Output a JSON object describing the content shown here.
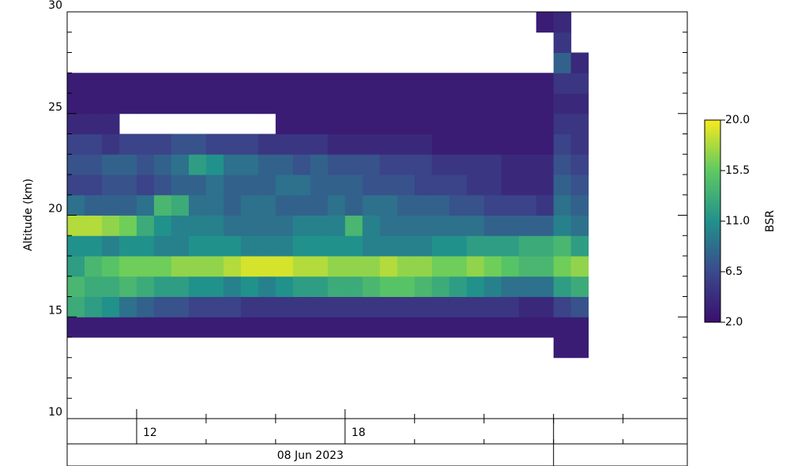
{
  "chart_data": {
    "type": "heatmap",
    "ylabel": "Altitude (km)",
    "date_label": "08 Jun 2023",
    "date_end": 24,
    "xlim": [
      10,
      27.85
    ],
    "ylim": [
      10,
      30
    ],
    "xticks": [
      12,
      18
    ],
    "x_minor_ticks": [
      14,
      16,
      20,
      22,
      24,
      26
    ],
    "yticks": [
      10,
      15,
      20,
      25,
      30
    ],
    "y_minor_ticks": [
      11,
      12,
      13,
      14,
      16,
      17,
      18,
      19,
      21,
      22,
      23,
      24,
      26,
      27,
      28,
      29
    ],
    "x": [
      10,
      10.5,
      11,
      11.5,
      12,
      12.5,
      13,
      13.5,
      14,
      14.5,
      15,
      15.5,
      16,
      16.5,
      17,
      17.5,
      18,
      18.5,
      19,
      19.5,
      20,
      20.5,
      21,
      21.5,
      22,
      22.5,
      23,
      23.5,
      24,
      24.5
    ],
    "y": [
      13,
      14,
      15,
      16,
      17,
      18,
      19,
      20,
      21,
      22,
      23,
      24,
      25,
      26,
      27,
      28,
      29
    ],
    "z": [
      [
        null,
        null,
        null,
        null,
        null,
        null,
        null,
        null,
        null,
        null,
        null,
        null,
        null,
        null,
        null,
        null,
        null,
        null,
        null,
        null,
        null,
        null,
        null,
        null,
        null,
        null,
        null,
        null,
        3,
        3
      ],
      [
        3,
        3,
        3,
        3,
        3,
        3,
        3,
        3,
        3,
        3,
        3,
        3,
        3,
        3,
        3,
        3,
        3,
        3,
        3,
        3,
        3,
        3,
        3,
        3,
        3,
        3,
        3,
        3,
        3,
        3
      ],
      [
        13,
        12,
        11,
        9,
        8,
        7,
        7,
        6,
        6,
        6,
        5,
        5,
        5,
        5,
        5,
        5,
        5,
        5,
        5,
        5,
        5,
        5,
        5,
        5,
        5,
        5,
        4,
        4,
        6,
        7
      ],
      [
        14,
        13,
        13,
        14,
        13,
        12,
        12,
        11,
        11,
        10,
        11,
        10,
        11,
        12,
        12,
        13,
        13,
        14,
        15,
        15,
        14,
        13,
        12,
        11,
        10,
        9,
        9,
        9,
        12,
        13
      ],
      [
        12,
        14,
        15,
        16,
        16,
        16,
        17,
        17,
        17,
        18,
        19,
        19,
        19,
        18,
        18,
        17,
        17,
        17,
        18,
        17,
        17,
        16,
        16,
        17,
        16,
        15,
        14,
        14,
        16,
        17
      ],
      [
        11,
        11,
        10,
        11,
        11,
        10,
        10,
        11,
        11,
        11,
        10,
        10,
        10,
        11,
        11,
        11,
        11,
        10,
        10,
        10,
        10,
        11,
        11,
        12,
        12,
        12,
        13,
        13,
        14,
        12
      ],
      [
        18,
        18,
        17,
        16,
        13,
        11,
        10,
        10,
        10,
        9,
        9,
        9,
        9,
        10,
        10,
        10,
        14,
        10,
        9,
        9,
        9,
        9,
        9,
        9,
        8,
        8,
        8,
        8,
        10,
        9
      ],
      [
        9,
        8,
        8,
        8,
        9,
        14,
        13,
        9,
        9,
        8,
        9,
        9,
        8,
        8,
        8,
        9,
        8,
        9,
        9,
        8,
        8,
        8,
        7,
        7,
        6,
        6,
        6,
        5,
        9,
        8
      ],
      [
        6,
        6,
        7,
        7,
        6,
        7,
        8,
        8,
        9,
        8,
        8,
        8,
        9,
        9,
        8,
        8,
        8,
        7,
        7,
        7,
        6,
        6,
        6,
        5,
        5,
        4,
        4,
        4,
        8,
        7
      ],
      [
        7,
        7,
        8,
        8,
        7,
        8,
        9,
        12,
        11,
        9,
        9,
        8,
        8,
        7,
        8,
        7,
        7,
        7,
        6,
        6,
        6,
        5,
        5,
        5,
        5,
        4,
        4,
        4,
        7,
        6
      ],
      [
        6,
        6,
        5,
        6,
        6,
        6,
        7,
        7,
        6,
        6,
        6,
        5,
        5,
        5,
        5,
        4,
        4,
        4,
        4,
        4,
        4,
        3,
        3,
        3,
        3,
        3,
        3,
        3,
        6,
        5
      ],
      [
        4,
        4,
        4,
        null,
        null,
        null,
        null,
        null,
        null,
        null,
        null,
        null,
        3,
        3,
        3,
        3,
        3,
        3,
        3,
        3,
        3,
        3,
        3,
        3,
        3,
        3,
        3,
        3,
        5,
        5
      ],
      [
        3,
        3,
        3,
        3,
        3,
        3,
        3,
        3,
        3,
        3,
        3,
        3,
        3,
        3,
        3,
        3,
        3,
        3,
        3,
        3,
        3,
        3,
        3,
        3,
        3,
        3,
        3,
        3,
        4,
        4
      ],
      [
        3,
        3,
        3,
        3,
        3,
        3,
        3,
        3,
        3,
        3,
        3,
        3,
        3,
        3,
        3,
        3,
        3,
        3,
        3,
        3,
        3,
        3,
        3,
        3,
        3,
        3,
        3,
        3,
        5,
        5
      ],
      [
        null,
        null,
        null,
        null,
        null,
        null,
        null,
        null,
        null,
        null,
        null,
        null,
        null,
        null,
        null,
        null,
        null,
        null,
        null,
        null,
        null,
        null,
        null,
        null,
        null,
        null,
        null,
        null,
        8,
        4
      ],
      [
        null,
        null,
        null,
        null,
        null,
        null,
        null,
        null,
        null,
        null,
        null,
        null,
        null,
        null,
        null,
        null,
        null,
        null,
        null,
        null,
        null,
        null,
        null,
        null,
        null,
        null,
        null,
        null,
        5,
        null
      ],
      [
        null,
        null,
        null,
        null,
        null,
        null,
        null,
        null,
        null,
        null,
        null,
        null,
        null,
        null,
        null,
        null,
        null,
        null,
        null,
        null,
        null,
        null,
        null,
        null,
        null,
        null,
        null,
        3,
        4,
        null
      ]
    ],
    "colorbar": {
      "label": "BSR",
      "lim": [
        2,
        20
      ],
      "ticks": [
        {
          "value": 2,
          "label": "2.0"
        },
        {
          "value": 6.5,
          "label": "6.5"
        },
        {
          "value": 11,
          "label": "11.0"
        },
        {
          "value": 15.5,
          "label": "15.5"
        },
        {
          "value": 20,
          "label": "20.0"
        }
      ],
      "colormap": [
        "#3a0f6e",
        "#3b4a8c",
        "#21918c",
        "#5ec962",
        "#f7ea1e"
      ]
    }
  }
}
